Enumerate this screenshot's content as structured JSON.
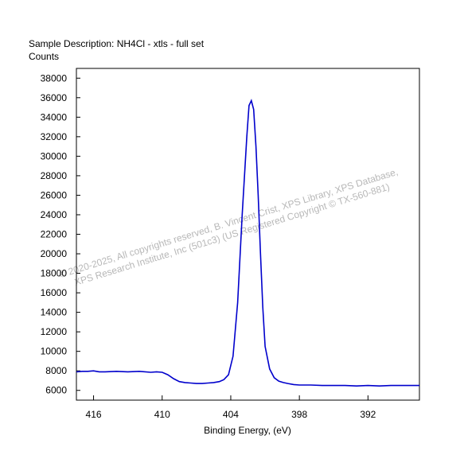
{
  "chart_data": {
    "type": "line",
    "title": "Sample Description:  NH4Cl - xtls - full set",
    "ylabel": "Counts",
    "xlabel": "Binding Energy, (eV)",
    "xlim": [
      417.5,
      387.5
    ],
    "ylim": [
      5000,
      39000
    ],
    "x_reversed": true,
    "grid": false,
    "legend": "none",
    "xticks": [
      416,
      410,
      404,
      398,
      392
    ],
    "yticks": [
      6000,
      8000,
      10000,
      12000,
      14000,
      16000,
      18000,
      20000,
      22000,
      24000,
      26000,
      28000,
      30000,
      32000,
      34000,
      36000,
      38000
    ],
    "line_color": "#0000cc",
    "series": [
      {
        "x": [
          417.5,
          417.0,
          416.5,
          416.0,
          415.5,
          415.0,
          414.0,
          413.0,
          412.0,
          411.0,
          410.5,
          410.0,
          409.5,
          409.0,
          408.5,
          408.0,
          407.5,
          407.0,
          406.5,
          406.0,
          405.5,
          405.0,
          404.6,
          404.2,
          403.8,
          403.4,
          403.0,
          402.6,
          402.4,
          402.2,
          402.0,
          401.8,
          401.6,
          401.4,
          401.2,
          401.0,
          400.6,
          400.2,
          399.8,
          399.4,
          399.0,
          398.5,
          398.0,
          397.0,
          396.0,
          395.0,
          394.0,
          393.0,
          392.0,
          391.0,
          390.0,
          389.0,
          388.0,
          387.5
        ],
        "y": [
          7900,
          7950,
          7950,
          8000,
          7900,
          7900,
          7950,
          7900,
          7950,
          7850,
          7900,
          7850,
          7600,
          7200,
          6900,
          6800,
          6750,
          6700,
          6700,
          6750,
          6800,
          6900,
          7100,
          7600,
          9500,
          15000,
          24000,
          32000,
          35200,
          35700,
          34800,
          31000,
          26000,
          20000,
          14500,
          10500,
          8200,
          7300,
          6950,
          6800,
          6700,
          6600,
          6550,
          6550,
          6500,
          6500,
          6500,
          6450,
          6500,
          6450,
          6500,
          6500,
          6500,
          6500
        ]
      }
    ],
    "watermark": [
      "©  2020-2025,  All copyrights reserved,   B. Vincent Crist,  XPS Library, XPS Database,",
      "XPS Research Institute, Inc (501c3)   (US Registered Copyright © TX-560-881)"
    ]
  }
}
